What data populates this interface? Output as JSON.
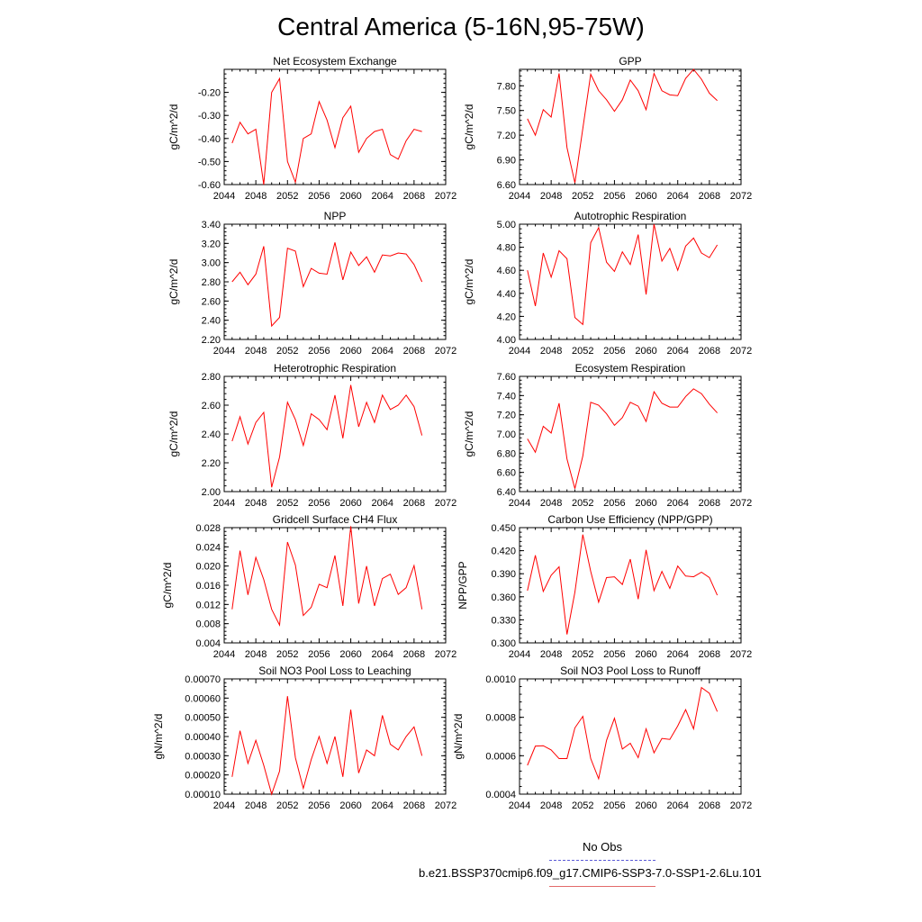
{
  "title": "Central America (5-16N,95-75W)",
  "legend": {
    "obs_label": "No Obs",
    "run_label": "b.e21.BSSP370cmip6.f09_g17.CMIP6-SSP3-7.0-SSP1-2.6Lu.101"
  },
  "colors": {
    "series": "#ff0000",
    "obs": "#5a5ad6",
    "run_legend": "#e36a6a"
  },
  "chart_data": [
    {
      "type": "line",
      "title": "Net Ecosystem Exchange",
      "ylabel": "gC/m^2/d",
      "xlim": [
        2044,
        2072
      ],
      "ylim": [
        -0.6,
        -0.1
      ],
      "xticks": [
        "2044",
        "2048",
        "2052",
        "2056",
        "2060",
        "2064",
        "2068",
        "2072"
      ],
      "yticks": [
        "-0.60",
        "-0.50",
        "-0.40",
        "-0.30",
        "-0.20"
      ],
      "x": [
        2045,
        2046,
        2047,
        2048,
        2049,
        2050,
        2051,
        2052,
        2053,
        2054,
        2055,
        2056,
        2057,
        2058,
        2059,
        2060,
        2061,
        2062,
        2063,
        2064,
        2065,
        2066,
        2067,
        2068,
        2069
      ],
      "values": [
        -0.42,
        -0.33,
        -0.38,
        -0.36,
        -0.6,
        -0.2,
        -0.14,
        -0.5,
        -0.59,
        -0.4,
        -0.38,
        -0.24,
        -0.32,
        -0.44,
        -0.31,
        -0.26,
        -0.46,
        -0.4,
        -0.37,
        -0.36,
        -0.47,
        -0.49,
        -0.41,
        -0.36,
        -0.37
      ]
    },
    {
      "type": "line",
      "title": "GPP",
      "ylabel": "gC/m^2/d",
      "xlim": [
        2044,
        2072
      ],
      "ylim": [
        6.6,
        8.0
      ],
      "xticks": [
        "2044",
        "2048",
        "2052",
        "2056",
        "2060",
        "2064",
        "2068",
        "2072"
      ],
      "yticks": [
        "6.60",
        "6.90",
        "7.20",
        "7.50",
        "7.80"
      ],
      "x": [
        2045,
        2046,
        2047,
        2048,
        2049,
        2050,
        2051,
        2052,
        2053,
        2054,
        2055,
        2056,
        2057,
        2058,
        2059,
        2060,
        2061,
        2062,
        2063,
        2064,
        2065,
        2066,
        2067,
        2068,
        2069
      ],
      "values": [
        7.4,
        7.2,
        7.51,
        7.42,
        7.95,
        7.05,
        6.62,
        7.28,
        7.94,
        7.74,
        7.63,
        7.49,
        7.63,
        7.87,
        7.74,
        7.51,
        7.95,
        7.74,
        7.69,
        7.68,
        7.89,
        8.0,
        7.88,
        7.71,
        7.62
      ]
    },
    {
      "type": "line",
      "title": "NPP",
      "ylabel": "gC/m^2/d",
      "xlim": [
        2044,
        2072
      ],
      "ylim": [
        2.2,
        3.4
      ],
      "xticks": [
        "2044",
        "2048",
        "2052",
        "2056",
        "2060",
        "2064",
        "2068",
        "2072"
      ],
      "yticks": [
        "2.20",
        "2.40",
        "2.60",
        "2.80",
        "3.00",
        "3.20",
        "3.40"
      ],
      "x": [
        2045,
        2046,
        2047,
        2048,
        2049,
        2050,
        2051,
        2052,
        2053,
        2054,
        2055,
        2056,
        2057,
        2058,
        2059,
        2060,
        2061,
        2062,
        2063,
        2064,
        2065,
        2066,
        2067,
        2068,
        2069
      ],
      "values": [
        2.8,
        2.9,
        2.77,
        2.88,
        3.17,
        2.34,
        2.43,
        3.15,
        3.12,
        2.75,
        2.94,
        2.89,
        2.88,
        3.21,
        2.82,
        3.11,
        2.97,
        3.06,
        2.9,
        3.08,
        3.07,
        3.1,
        3.09,
        2.98,
        2.8
      ]
    },
    {
      "type": "line",
      "title": "Autotrophic Respiration",
      "ylabel": "gC/m^2/d",
      "xlim": [
        2044,
        2072
      ],
      "ylim": [
        4.0,
        5.0
      ],
      "xticks": [
        "2044",
        "2048",
        "2052",
        "2056",
        "2060",
        "2064",
        "2068",
        "2072"
      ],
      "yticks": [
        "4.00",
        "4.20",
        "4.40",
        "4.60",
        "4.80",
        "5.00"
      ],
      "x": [
        2045,
        2046,
        2047,
        2048,
        2049,
        2050,
        2051,
        2052,
        2053,
        2054,
        2055,
        2056,
        2057,
        2058,
        2059,
        2060,
        2061,
        2062,
        2063,
        2064,
        2065,
        2066,
        2067,
        2068,
        2069
      ],
      "values": [
        4.6,
        4.29,
        4.75,
        4.54,
        4.77,
        4.7,
        4.19,
        4.13,
        4.84,
        4.97,
        4.67,
        4.59,
        4.76,
        4.65,
        4.91,
        4.39,
        5.0,
        4.68,
        4.79,
        4.6,
        4.81,
        4.88,
        4.75,
        4.71,
        4.82
      ]
    },
    {
      "type": "line",
      "title": "Heterotrophic Respiration",
      "ylabel": "gC/m^2/d",
      "xlim": [
        2044,
        2072
      ],
      "ylim": [
        2.0,
        2.8
      ],
      "xticks": [
        "2044",
        "2048",
        "2052",
        "2056",
        "2060",
        "2064",
        "2068",
        "2072"
      ],
      "yticks": [
        "2.00",
        "2.20",
        "2.40",
        "2.60",
        "2.80"
      ],
      "x": [
        2045,
        2046,
        2047,
        2048,
        2049,
        2050,
        2051,
        2052,
        2053,
        2054,
        2055,
        2056,
        2057,
        2058,
        2059,
        2060,
        2061,
        2062,
        2063,
        2064,
        2065,
        2066,
        2067,
        2068,
        2069
      ],
      "values": [
        2.35,
        2.52,
        2.33,
        2.48,
        2.55,
        2.03,
        2.24,
        2.62,
        2.5,
        2.32,
        2.54,
        2.5,
        2.43,
        2.67,
        2.37,
        2.74,
        2.45,
        2.62,
        2.48,
        2.67,
        2.57,
        2.6,
        2.67,
        2.59,
        2.39
      ]
    },
    {
      "type": "line",
      "title": "Ecosystem Respiration",
      "ylabel": "gC/m^2/d",
      "xlim": [
        2044,
        2072
      ],
      "ylim": [
        6.4,
        7.6
      ],
      "xticks": [
        "2044",
        "2048",
        "2052",
        "2056",
        "2060",
        "2064",
        "2068",
        "2072"
      ],
      "yticks": [
        "6.40",
        "6.60",
        "6.80",
        "7.00",
        "7.20",
        "7.40",
        "7.60"
      ],
      "x": [
        2045,
        2046,
        2047,
        2048,
        2049,
        2050,
        2051,
        2052,
        2053,
        2054,
        2055,
        2056,
        2057,
        2058,
        2059,
        2060,
        2061,
        2062,
        2063,
        2064,
        2065,
        2066,
        2067,
        2068,
        2069
      ],
      "values": [
        6.95,
        6.81,
        7.08,
        7.01,
        7.32,
        6.74,
        6.43,
        6.77,
        7.33,
        7.3,
        7.21,
        7.09,
        7.17,
        7.33,
        7.29,
        7.13,
        7.44,
        7.32,
        7.28,
        7.28,
        7.39,
        7.47,
        7.42,
        7.31,
        7.22
      ]
    },
    {
      "type": "line",
      "title": "Gridcell Surface CH4 Flux",
      "ylabel": "gC/m^2/d",
      "xlim": [
        2044,
        2072
      ],
      "ylim": [
        0.004,
        0.028
      ],
      "xticks": [
        "2044",
        "2048",
        "2052",
        "2056",
        "2060",
        "2064",
        "2068",
        "2072"
      ],
      "yticks": [
        "0.004",
        "0.008",
        "0.012",
        "0.016",
        "0.020",
        "0.024",
        "0.028"
      ],
      "x": [
        2045,
        2046,
        2047,
        2048,
        2049,
        2050,
        2051,
        2052,
        2053,
        2054,
        2055,
        2056,
        2057,
        2058,
        2059,
        2060,
        2061,
        2062,
        2063,
        2064,
        2065,
        2066,
        2067,
        2068,
        2069
      ],
      "values": [
        0.011,
        0.0232,
        0.014,
        0.0218,
        0.0172,
        0.011,
        0.0077,
        0.025,
        0.0202,
        0.0097,
        0.0114,
        0.0162,
        0.0155,
        0.0222,
        0.0117,
        0.0283,
        0.0122,
        0.02,
        0.0117,
        0.0174,
        0.0183,
        0.0141,
        0.0155,
        0.0201,
        0.011
      ]
    },
    {
      "type": "line",
      "title": "Carbon Use Efficiency (NPP/GPP)",
      "ylabel": "NPP/GPP",
      "xlim": [
        2044,
        2072
      ],
      "ylim": [
        0.3,
        0.45
      ],
      "xticks": [
        "2044",
        "2048",
        "2052",
        "2056",
        "2060",
        "2064",
        "2068",
        "2072"
      ],
      "yticks": [
        "0.300",
        "0.330",
        "0.360",
        "0.390",
        "0.420",
        "0.450"
      ],
      "x": [
        2045,
        2046,
        2047,
        2048,
        2049,
        2050,
        2051,
        2052,
        2053,
        2054,
        2055,
        2056,
        2057,
        2058,
        2059,
        2060,
        2061,
        2062,
        2063,
        2064,
        2065,
        2066,
        2067,
        2068,
        2069
      ],
      "values": [
        0.368,
        0.414,
        0.367,
        0.388,
        0.399,
        0.311,
        0.366,
        0.441,
        0.393,
        0.353,
        0.385,
        0.386,
        0.376,
        0.409,
        0.357,
        0.421,
        0.368,
        0.393,
        0.371,
        0.4,
        0.387,
        0.386,
        0.392,
        0.385,
        0.362
      ]
    },
    {
      "type": "line",
      "title": "Soil NO3 Pool Loss to Leaching",
      "ylabel": "gN/m^2/d",
      "xlim": [
        2044,
        2072
      ],
      "ylim": [
        0.0001,
        0.0007
      ],
      "xticks": [
        "2044",
        "2048",
        "2052",
        "2056",
        "2060",
        "2064",
        "2068",
        "2072"
      ],
      "yticks": [
        "0.00010",
        "0.00020",
        "0.00030",
        "0.00040",
        "0.00050",
        "0.00060",
        "0.00070"
      ],
      "x": [
        2045,
        2046,
        2047,
        2048,
        2049,
        2050,
        2051,
        2052,
        2053,
        2054,
        2055,
        2056,
        2057,
        2058,
        2059,
        2060,
        2061,
        2062,
        2063,
        2064,
        2065,
        2066,
        2067,
        2068,
        2069
      ],
      "values": [
        0.00019,
        0.00043,
        0.00026,
        0.00038,
        0.00025,
        0.0001,
        0.00022,
        0.00061,
        0.00029,
        0.00013,
        0.00028,
        0.0004,
        0.00026,
        0.0004,
        0.00019,
        0.00054,
        0.00021,
        0.00033,
        0.0003,
        0.00051,
        0.00036,
        0.00033,
        0.0004,
        0.00045,
        0.0003
      ]
    },
    {
      "type": "line",
      "title": "Soil NO3 Pool Loss to Runoff",
      "ylabel": "gN/m^2/d",
      "xlim": [
        2044,
        2072
      ],
      "ylim": [
        0.0004,
        0.001
      ],
      "xticks": [
        "2044",
        "2048",
        "2052",
        "2056",
        "2060",
        "2064",
        "2068",
        "2072"
      ],
      "yticks": [
        "0.0004",
        "0.0006",
        "0.0008",
        "0.0010"
      ],
      "x": [
        2045,
        2046,
        2047,
        2048,
        2049,
        2050,
        2051,
        2052,
        2053,
        2054,
        2055,
        2056,
        2057,
        2058,
        2059,
        2060,
        2061,
        2062,
        2063,
        2064,
        2065,
        2066,
        2067,
        2068,
        2069
      ],
      "values": [
        0.00055,
        0.00065,
        0.000652,
        0.00063,
        0.000585,
        0.000585,
        0.000745,
        0.000805,
        0.000585,
        0.00048,
        0.00068,
        0.000795,
        0.000635,
        0.000665,
        0.00059,
        0.00074,
        0.000615,
        0.00069,
        0.000685,
        0.000755,
        0.00084,
        0.00074,
        0.000955,
        0.000925,
        0.00083
      ]
    }
  ]
}
